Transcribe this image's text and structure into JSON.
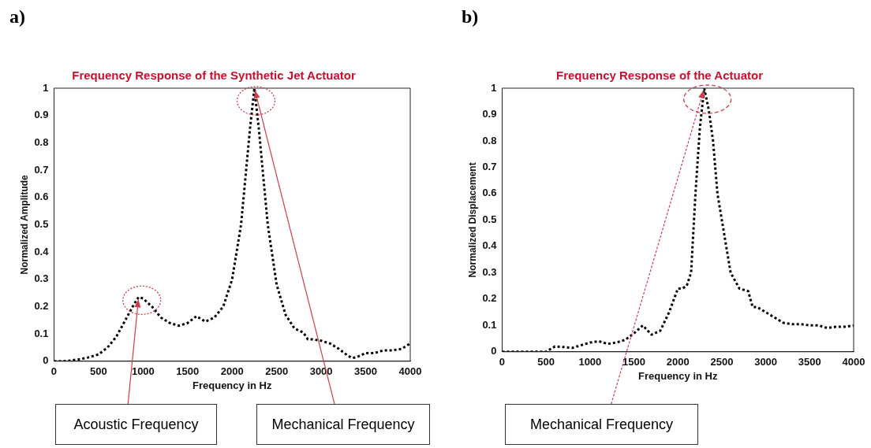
{
  "chart_data": [
    {
      "type": "line",
      "title": "Frequency Response of the Synthetic Jet Actuator",
      "xlabel": "Frequency in Hz",
      "ylabel": "Normalized Amplitude",
      "xlim": [
        0,
        4000
      ],
      "xticks": [
        0,
        500,
        1000,
        1500,
        2000,
        2500,
        3000,
        3500,
        4000
      ],
      "ylim": [
        0,
        1
      ],
      "yticks": [
        0,
        0.1,
        0.2,
        0.3,
        0.4,
        0.5,
        0.6,
        0.7,
        0.8,
        0.9,
        1
      ],
      "marker": "none",
      "line_style": "dotted",
      "annotations": [
        "a)",
        {
          "text": "Acoustic Frequency",
          "x": 950,
          "y": 0.235
        },
        {
          "text": "Mechanical Frequency",
          "x": 2250,
          "y": 1
        }
      ],
      "x": [
        0,
        100,
        200,
        300,
        400,
        500,
        600,
        700,
        800,
        900,
        950,
        1000,
        1100,
        1200,
        1300,
        1400,
        1500,
        1600,
        1700,
        1800,
        1900,
        2000,
        2100,
        2200,
        2250,
        2300,
        2400,
        2500,
        2600,
        2700,
        2800,
        2850,
        2900,
        3000,
        3100,
        3200,
        3300,
        3350,
        3400,
        3500,
        3600,
        3700,
        3800,
        3900,
        4000
      ],
      "series": [
        {
          "color": "#000000",
          "values": [
            0,
            0,
            0.003,
            0.008,
            0.015,
            0.025,
            0.05,
            0.09,
            0.15,
            0.21,
            0.235,
            0.23,
            0.2,
            0.16,
            0.14,
            0.13,
            0.14,
            0.165,
            0.145,
            0.16,
            0.2,
            0.3,
            0.5,
            0.85,
            1,
            0.85,
            0.5,
            0.28,
            0.17,
            0.12,
            0.105,
            0.08,
            0.08,
            0.075,
            0.065,
            0.045,
            0.02,
            0.012,
            0.015,
            0.03,
            0.03,
            0.04,
            0.04,
            0.045,
            0.065
          ]
        }
      ]
    },
    {
      "type": "line",
      "title": "Frequency Response of the Actuator",
      "xlabel": "Frequency in Hz",
      "ylabel": "Normalized Displacement",
      "xlim": [
        0,
        4000
      ],
      "xticks": [
        0,
        500,
        1000,
        1500,
        2000,
        2500,
        3000,
        3500,
        4000
      ],
      "ylim": [
        0,
        1
      ],
      "yticks": [
        0,
        0.1,
        0.2,
        0.3,
        0.4,
        0.5,
        0.6,
        0.7,
        0.8,
        0.9,
        1
      ],
      "marker": "none",
      "line_style": "dotted",
      "annotations": [
        "b)",
        {
          "text": "Mechanical Frequency",
          "x": 2300,
          "y": 1
        }
      ],
      "x": [
        0,
        500,
        600,
        700,
        800,
        900,
        1000,
        1100,
        1200,
        1300,
        1400,
        1500,
        1600,
        1700,
        1800,
        1900,
        2000,
        2050,
        2100,
        2150,
        2200,
        2250,
        2300,
        2350,
        2400,
        2450,
        2500,
        2600,
        2700,
        2800,
        2850,
        2900,
        3000,
        3100,
        3200,
        3300,
        3400,
        3500,
        3600,
        3700,
        3800,
        3900,
        4000
      ],
      "series": [
        {
          "color": "#000000",
          "values": [
            0,
            0,
            0.02,
            0.018,
            0.015,
            0.025,
            0.035,
            0.04,
            0.03,
            0.035,
            0.045,
            0.07,
            0.1,
            0.065,
            0.08,
            0.15,
            0.24,
            0.24,
            0.25,
            0.3,
            0.6,
            0.85,
            1,
            0.92,
            0.8,
            0.6,
            0.5,
            0.3,
            0.24,
            0.23,
            0.17,
            0.17,
            0.15,
            0.13,
            0.11,
            0.105,
            0.105,
            0.1,
            0.1,
            0.09,
            0.095,
            0.095,
            0.1
          ]
        }
      ]
    }
  ]
}
